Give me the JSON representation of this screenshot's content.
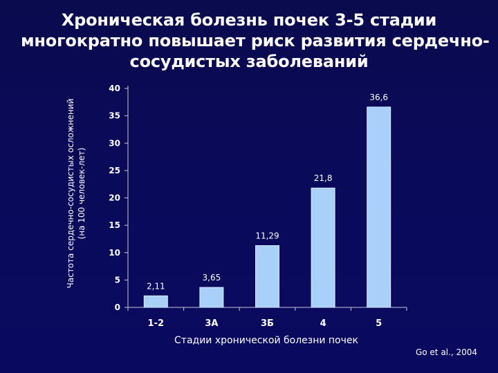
{
  "slide": {
    "title_lines": [
      "Хроническая болезнь почек 3-5 стадии",
      "многократно повышает риск развития сердечно-",
      "сосудистых заболеваний"
    ],
    "source": "Go et al., 2004"
  },
  "chart_data": {
    "type": "bar",
    "categories": [
      "1-2",
      "3А",
      "3Б",
      "4",
      "5"
    ],
    "values": [
      2.11,
      3.65,
      11.29,
      21.8,
      36.6
    ],
    "value_labels": [
      "2,11",
      "3,65",
      "11,29",
      "21,8",
      "36,6"
    ],
    "ylabel_lines": [
      "Частота сердечно-сосудистых осложнений",
      "(на 100 человек-лет)"
    ],
    "xlabel": "Стадии хронической болезни почек",
    "ylim": [
      0,
      40
    ],
    "yticks": [
      0,
      5,
      10,
      15,
      20,
      25,
      30,
      35,
      40
    ],
    "grid": false,
    "legend": "none",
    "colors": {
      "bar_fill": "#a8d0f8",
      "bar_stroke": "#d8ecff",
      "axis": "#c8c8d8",
      "background": "#0a0a5a"
    }
  }
}
